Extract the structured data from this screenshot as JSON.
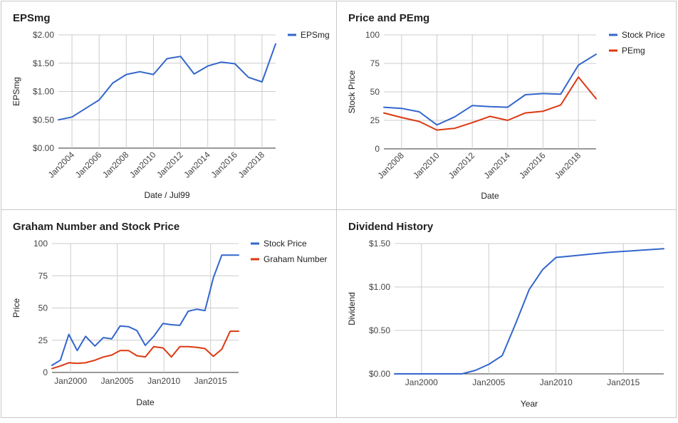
{
  "colors": {
    "blue": "#3366cc",
    "red": "#dc3912"
  },
  "chart_data": [
    {
      "type": "line",
      "title": "EPSmg",
      "xlabel": "Date / Jul99",
      "ylabel": "EPSmg",
      "xlim": [
        2003,
        2019
      ],
      "ylim": [
        0,
        2
      ],
      "yticks": [
        "$0.00",
        "$0.50",
        "$1.00",
        "$1.50",
        "$2.00"
      ],
      "xticks": [
        "Jan2004",
        "Jan2006",
        "Jan2008",
        "Jan2010",
        "Jan2012",
        "Jan2014",
        "Jan2016",
        "Jan2018"
      ],
      "legend": "right",
      "series": [
        {
          "name": "EPSmg",
          "color": "#3366cc",
          "x": [
            2003,
            2004,
            2005,
            2006,
            2007,
            2008,
            2009,
            2010,
            2011,
            2012,
            2013,
            2014,
            2015,
            2016,
            2017,
            2018,
            2019
          ],
          "y": [
            0.5,
            0.55,
            0.7,
            0.85,
            1.15,
            1.3,
            1.35,
            1.3,
            1.58,
            1.62,
            1.31,
            1.45,
            1.52,
            1.49,
            1.25,
            1.17,
            1.84
          ]
        }
      ]
    },
    {
      "type": "line",
      "title": "Price and PEmg",
      "xlabel": "Date",
      "ylabel": "Stock Price",
      "xlim": [
        2007,
        2019
      ],
      "ylim": [
        0,
        100
      ],
      "yticks": [
        "0",
        "25",
        "50",
        "75",
        "100"
      ],
      "xticks": [
        "Jan2008",
        "Jan2010",
        "Jan2012",
        "Jan2014",
        "Jan2016",
        "Jan2018"
      ],
      "legend": "right",
      "series": [
        {
          "name": "Stock Price",
          "color": "#3366cc",
          "x": [
            2007,
            2008,
            2009,
            2010,
            2011,
            2012,
            2013,
            2014,
            2015,
            2016,
            2017,
            2018,
            2019
          ],
          "y": [
            36.5,
            35.5,
            32.5,
            21,
            28,
            38,
            37,
            36.5,
            47.5,
            48.5,
            48,
            73.5,
            83
          ]
        },
        {
          "name": "PEmg",
          "color": "#dc3912",
          "x": [
            2007,
            2008,
            2009,
            2010,
            2011,
            2012,
            2013,
            2014,
            2015,
            2016,
            2017,
            2018,
            2019
          ],
          "y": [
            31.5,
            27.5,
            24,
            16.5,
            18,
            23,
            28.5,
            25,
            31.5,
            33,
            38.5,
            63,
            44
          ]
        }
      ]
    },
    {
      "type": "line",
      "title": "Graham Number and Stock Price",
      "xlabel": "Date",
      "ylabel": "Price",
      "xlim": [
        1998,
        2018
      ],
      "ylim": [
        0,
        100
      ],
      "yticks": [
        "0",
        "25",
        "50",
        "75",
        "100"
      ],
      "xticks": [
        "Jan2000",
        "Jan2005",
        "Jan2010",
        "Jan2015"
      ],
      "legend": "right",
      "series": [
        {
          "name": "Stock Price",
          "color": "#3366cc",
          "x": [
            1998,
            1998.9,
            1999.8,
            2000.7,
            2001.6,
            2002.6,
            2003.5,
            2004.4,
            2005.3,
            2006.2,
            2007.1,
            2008,
            2008.9,
            2009.9,
            2010.8,
            2011.7,
            2012.6,
            2013.5,
            2014.4,
            2015.3,
            2016.2,
            2017.1,
            2018
          ],
          "y": [
            5.5,
            9.5,
            29.5,
            17,
            28,
            20.5,
            27,
            26,
            36,
            35.5,
            32.5,
            21,
            28,
            38,
            37,
            36.5,
            47.5,
            49,
            48,
            73.5,
            91,
            91,
            91
          ]
        },
        {
          "name": "Graham Number",
          "color": "#dc3912",
          "x": [
            1998,
            1998.9,
            1999.8,
            2000.7,
            2001.6,
            2002.6,
            2003.5,
            2004.4,
            2005.3,
            2006.2,
            2007.1,
            2008,
            2008.9,
            2009.9,
            2010.8,
            2011.7,
            2012.6,
            2013.5,
            2014.4,
            2015.3,
            2016.2,
            2017.1,
            2018
          ],
          "y": [
            3,
            5,
            7.5,
            7,
            7.5,
            9.5,
            12,
            13.5,
            17,
            17,
            13,
            12,
            20,
            19,
            12,
            20,
            20,
            19.5,
            18.5,
            12.5,
            18,
            32,
            32
          ]
        }
      ]
    },
    {
      "type": "line",
      "title": "Dividend History",
      "xlabel": "Year",
      "ylabel": "Dividend",
      "xlim": [
        1998,
        2018
      ],
      "ylim": [
        0,
        1.5
      ],
      "yticks": [
        "$0.00",
        "$0.50",
        "$1.00",
        "$1.50"
      ],
      "xticks": [
        "Jan2000",
        "Jan2005",
        "Jan2010",
        "Jan2015"
      ],
      "legend": "none",
      "series": [
        {
          "name": "",
          "color": "#3366cc",
          "x": [
            1998,
            1999,
            2000,
            2001,
            2002,
            2003,
            2004,
            2005,
            2006,
            2007,
            2008,
            2009,
            2010,
            2011,
            2012,
            2013,
            2014,
            2015,
            2016,
            2017,
            2018
          ],
          "y": [
            0,
            0,
            0,
            0,
            0,
            0,
            0.04,
            0.11,
            0.21,
            0.58,
            0.97,
            1.2,
            1.34,
            1.355,
            1.37,
            1.385,
            1.4,
            1.41,
            1.42,
            1.43,
            1.44
          ]
        }
      ]
    }
  ]
}
